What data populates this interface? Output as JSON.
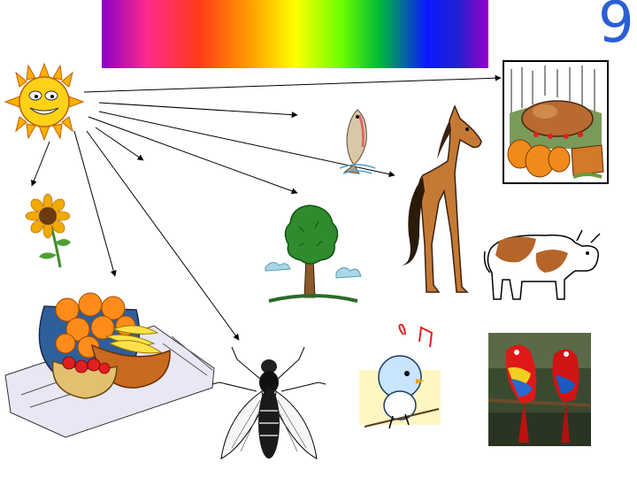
{
  "slide": {
    "page_number": "9",
    "spectrum_colors": [
      "#8a00c8",
      "#ff2a8a",
      "#ff3a1a",
      "#ff9a00",
      "#ffff00",
      "#6cff00",
      "#00b83a",
      "#0a1aff",
      "#2020d0",
      "#9a00c8"
    ]
  },
  "diagram": {
    "source": "sun",
    "targets": [
      "sunflower",
      "fruit-basket",
      "fly",
      "tree",
      "fish",
      "horse",
      "turkey-dinner"
    ],
    "other_items": [
      "cow",
      "bird",
      "parrots"
    ],
    "colors": {
      "arrow": "#000000",
      "sun": "#ffc20e",
      "tree": "#2e8b2e",
      "horse": "#c47a35"
    }
  }
}
